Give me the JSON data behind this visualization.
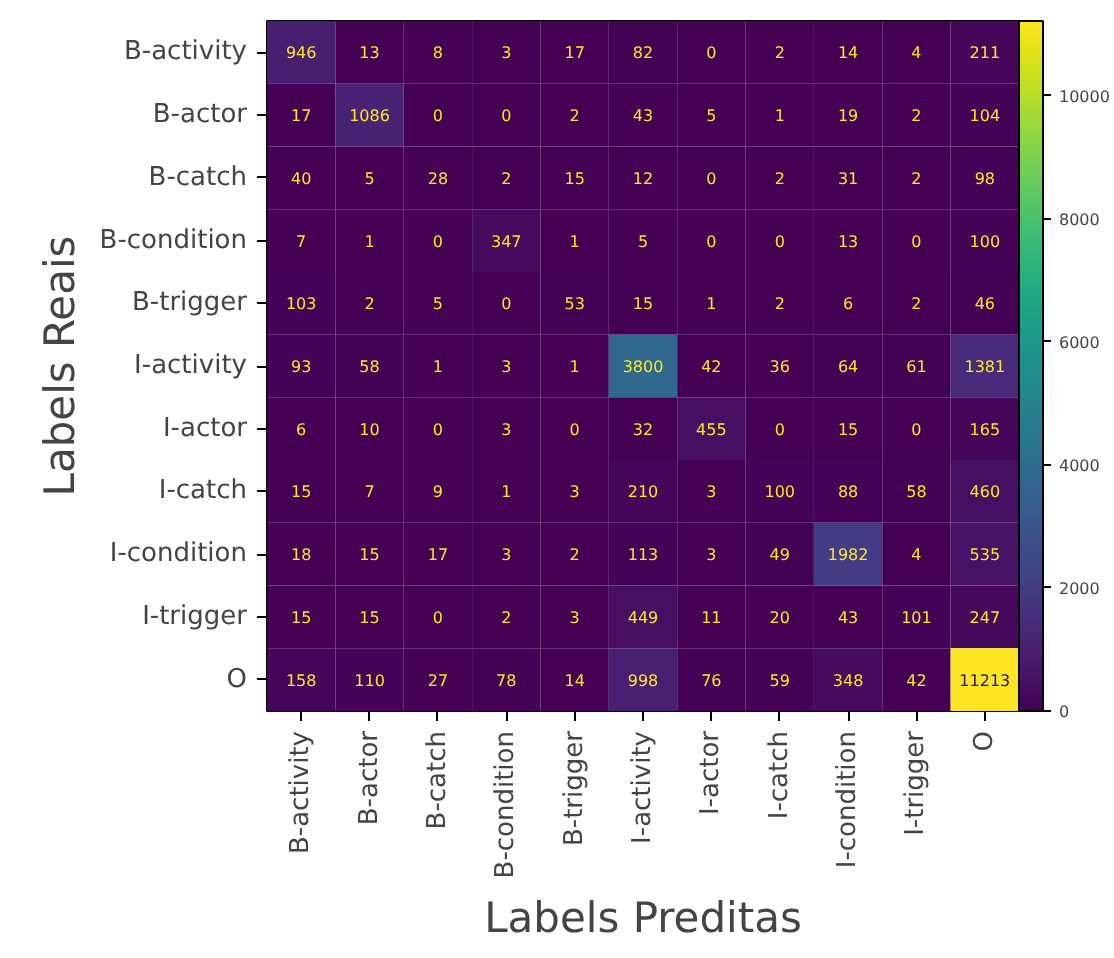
{
  "chart_data": {
    "type": "heatmap",
    "xlabel": "Labels Preditas",
    "ylabel": "Labels Reais",
    "categories": [
      "B-activity",
      "B-actor",
      "B-catch",
      "B-condition",
      "B-trigger",
      "I-activity",
      "I-actor",
      "I-catch",
      "I-condition",
      "I-trigger",
      "O"
    ],
    "y_categories": [
      "B-activity",
      "B-actor",
      "B-catch",
      "B-condition",
      "B-trigger",
      "I-activity",
      "I-actor",
      "I-catch",
      "I-condition",
      "I-trigger",
      "O"
    ],
    "cells": [
      [
        946,
        13,
        8,
        3,
        17,
        82,
        0,
        2,
        14,
        4,
        211
      ],
      [
        17,
        1086,
        0,
        0,
        2,
        43,
        5,
        1,
        19,
        2,
        104
      ],
      [
        40,
        5,
        28,
        2,
        15,
        12,
        0,
        2,
        31,
        2,
        98
      ],
      [
        7,
        1,
        0,
        347,
        1,
        5,
        0,
        0,
        13,
        0,
        100
      ],
      [
        103,
        2,
        5,
        0,
        53,
        15,
        1,
        2,
        6,
        2,
        46
      ],
      [
        93,
        58,
        1,
        3,
        1,
        3800,
        42,
        36,
        64,
        61,
        1381
      ],
      [
        6,
        10,
        0,
        3,
        0,
        32,
        455,
        0,
        15,
        0,
        165
      ],
      [
        15,
        7,
        9,
        1,
        3,
        210,
        3,
        100,
        88,
        58,
        460
      ],
      [
        18,
        15,
        17,
        3,
        2,
        113,
        3,
        49,
        1982,
        4,
        535
      ],
      [
        15,
        15,
        0,
        2,
        3,
        449,
        11,
        20,
        43,
        101,
        247
      ],
      [
        158,
        110,
        27,
        78,
        14,
        998,
        76,
        59,
        348,
        42,
        11213
      ]
    ],
    "data_labels": true,
    "clim": [
      0,
      11213
    ],
    "cticks": [
      0,
      2000,
      4000,
      6000,
      8000,
      10000
    ]
  }
}
